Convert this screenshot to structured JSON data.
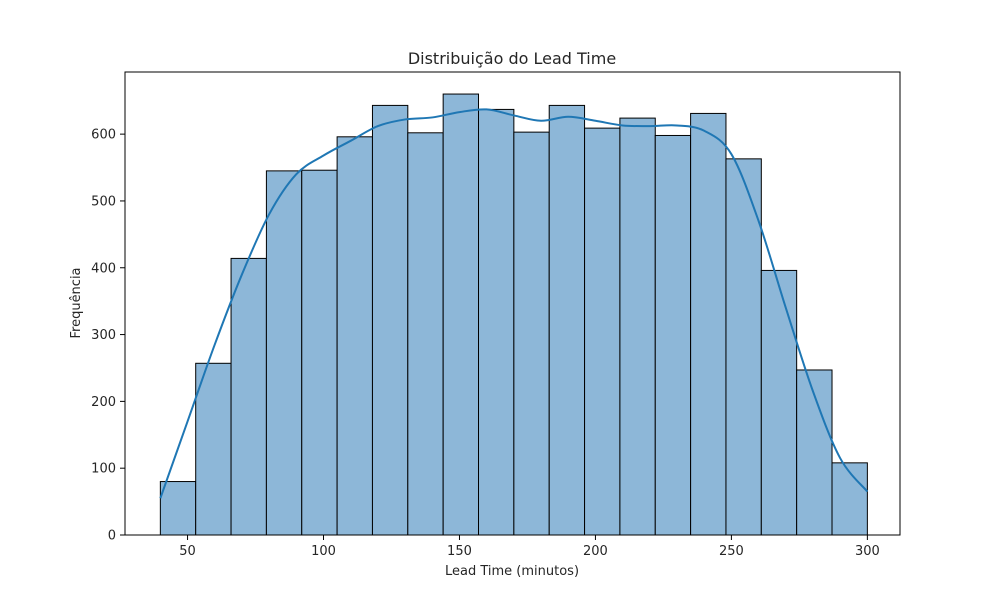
{
  "chart_data": {
    "type": "bar",
    "subtype": "histogram",
    "title": "Distribuição do Lead Time",
    "xlabel": "Lead Time (minutos)",
    "ylabel": "Frequência",
    "xlim": [
      27,
      312
    ],
    "ylim": [
      0,
      693
    ],
    "xticks": [
      50,
      100,
      150,
      200,
      250,
      300
    ],
    "yticks": [
      0,
      100,
      200,
      300,
      400,
      500,
      600
    ],
    "grid": false,
    "bins": {
      "edges": [
        40,
        53,
        66,
        79,
        92,
        105,
        118,
        131,
        144,
        157,
        170,
        183,
        196,
        209,
        222,
        235,
        248,
        261,
        274,
        287,
        300
      ],
      "counts": [
        80,
        257,
        414,
        545,
        546,
        596,
        643,
        602,
        660,
        637,
        603,
        643,
        609,
        624,
        598,
        631,
        563,
        396,
        247,
        108
      ]
    },
    "kde": {
      "x": [
        40,
        50,
        60,
        70,
        80,
        90,
        100,
        110,
        120,
        130,
        140,
        150,
        160,
        170,
        180,
        190,
        200,
        210,
        220,
        230,
        240,
        250,
        260,
        270,
        280,
        290,
        300
      ],
      "y": [
        55,
        170,
        285,
        390,
        480,
        540,
        568,
        590,
        612,
        622,
        625,
        633,
        637,
        628,
        620,
        626,
        620,
        613,
        612,
        613,
        605,
        570,
        470,
        340,
        215,
        115,
        65
      ]
    },
    "colors": {
      "bar_fill": "#8db7d8",
      "bar_edge": "#000000",
      "kde_line": "#1f77b4",
      "text": "#262626"
    }
  }
}
